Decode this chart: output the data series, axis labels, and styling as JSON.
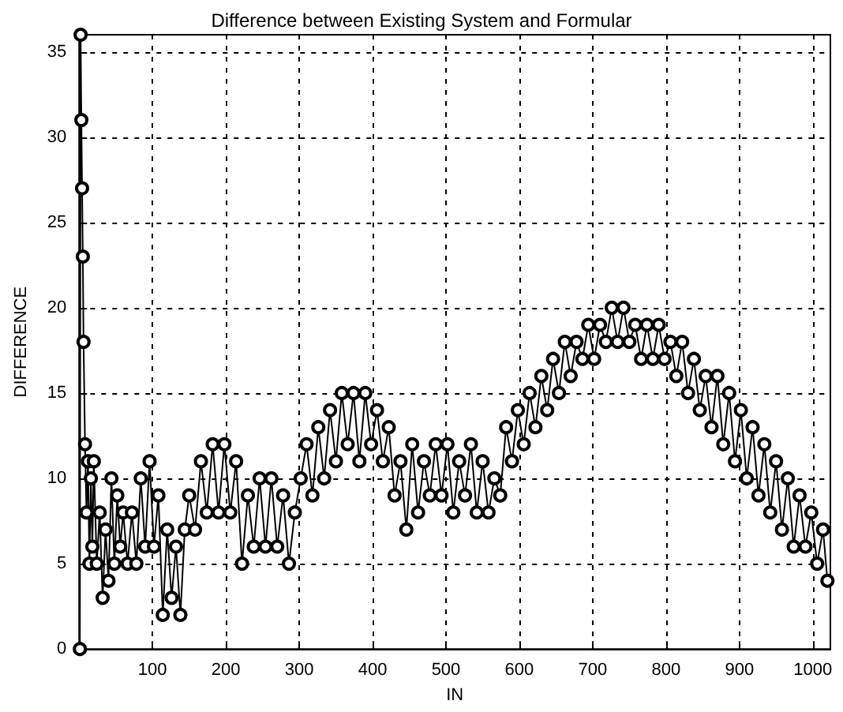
{
  "chart_data": {
    "type": "line",
    "title": "Difference between Existing System and Formular",
    "xlabel": "IN",
    "ylabel": "DIFFERENCE",
    "xlim": [
      0,
      1024
    ],
    "xticks": [
      100,
      200,
      300,
      400,
      500,
      600,
      700,
      800,
      900,
      1000
    ],
    "ylim": [
      0,
      36
    ],
    "yticks": [
      0,
      5,
      10,
      15,
      20,
      25,
      30,
      35
    ],
    "grid": true,
    "marker": "circle",
    "line_style": "solid",
    "series": [
      {
        "color": "#000000",
        "x": [
          1,
          2,
          3,
          4,
          5,
          6,
          8,
          10,
          12,
          14,
          16,
          18,
          20,
          24,
          28,
          32,
          36,
          40,
          44,
          48,
          52,
          56,
          60,
          66,
          72,
          78,
          84,
          90,
          96,
          102,
          108,
          114,
          120,
          126,
          132,
          138,
          144,
          150,
          158,
          166,
          174,
          182,
          190,
          198,
          206,
          214,
          222,
          230,
          238,
          246,
          254,
          262,
          270,
          278,
          286,
          294,
          302,
          310,
          318,
          326,
          334,
          342,
          350,
          358,
          366,
          374,
          382,
          390,
          398,
          406,
          414,
          422,
          430,
          438,
          446,
          454,
          462,
          470,
          478,
          486,
          494,
          502,
          510,
          518,
          526,
          534,
          542,
          550,
          558,
          566,
          574,
          582,
          590,
          598,
          606,
          614,
          622,
          630,
          638,
          646,
          654,
          662,
          670,
          678,
          686,
          694,
          702,
          710,
          718,
          726,
          734,
          742,
          750,
          758,
          766,
          774,
          782,
          790,
          798,
          806,
          814,
          822,
          830,
          838,
          846,
          854,
          862,
          870,
          878,
          886,
          894,
          902,
          910,
          918,
          926,
          934,
          942,
          950,
          958,
          966,
          974,
          982,
          990,
          998,
          1006,
          1014,
          1020
        ],
        "values": [
          0,
          36,
          31,
          27,
          23,
          18,
          12,
          8,
          11,
          5,
          10,
          6,
          11,
          5,
          8,
          3,
          7,
          4,
          10,
          5,
          9,
          6,
          8,
          5,
          8,
          5,
          10,
          6,
          11,
          6,
          9,
          2,
          7,
          3,
          6,
          2,
          7,
          9,
          7,
          11,
          8,
          12,
          8,
          12,
          8,
          11,
          5,
          9,
          6,
          10,
          6,
          10,
          6,
          9,
          5,
          8,
          10,
          12,
          9,
          13,
          10,
          14,
          11,
          15,
          12,
          15,
          11,
          15,
          12,
          14,
          11,
          13,
          9,
          11,
          7,
          12,
          8,
          11,
          9,
          12,
          9,
          12,
          8,
          11,
          9,
          12,
          8,
          11,
          8,
          10,
          9,
          13,
          11,
          14,
          12,
          15,
          13,
          16,
          14,
          17,
          15,
          18,
          16,
          18,
          17,
          19,
          17,
          19,
          18,
          20,
          18,
          20,
          18,
          19,
          17,
          19,
          17,
          19,
          17,
          18,
          16,
          18,
          15,
          17,
          14,
          16,
          13,
          16,
          12,
          15,
          11,
          14,
          10,
          13,
          9,
          12,
          8,
          11,
          7,
          10,
          6,
          9,
          6,
          8,
          5,
          7,
          4
        ]
      }
    ]
  }
}
